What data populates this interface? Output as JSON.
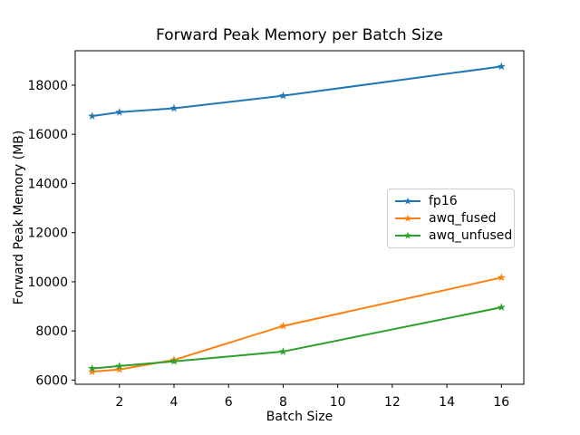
{
  "chart_data": {
    "type": "line",
    "title": "Forward Peak Memory per Batch Size",
    "xlabel": "Batch Size",
    "ylabel": "Forward Peak Memory (MB)",
    "x": [
      1,
      2,
      4,
      8,
      16
    ],
    "series": [
      {
        "name": "fp16",
        "color": "#1f77b4",
        "marker": "star",
        "values": [
          16740,
          16900,
          17060,
          17570,
          18760
        ]
      },
      {
        "name": "awq_fused",
        "color": "#ff7f0e",
        "marker": "star",
        "values": [
          6340,
          6430,
          6820,
          8200,
          10170
        ]
      },
      {
        "name": "awq_unfused",
        "color": "#2ca02c",
        "marker": "star",
        "values": [
          6470,
          6570,
          6760,
          7160,
          8960
        ]
      }
    ],
    "xticks": [
      2,
      4,
      6,
      8,
      10,
      12,
      14,
      16
    ],
    "yticks": [
      6000,
      8000,
      10000,
      12000,
      14000,
      16000,
      18000
    ],
    "xlim": [
      0.38,
      16.82
    ],
    "ylim": [
      5830,
      19400
    ],
    "grid": false,
    "legend_position": "center right"
  },
  "style": {
    "axis_color": "#000000",
    "text_color": "#000000",
    "line_width": 2
  }
}
